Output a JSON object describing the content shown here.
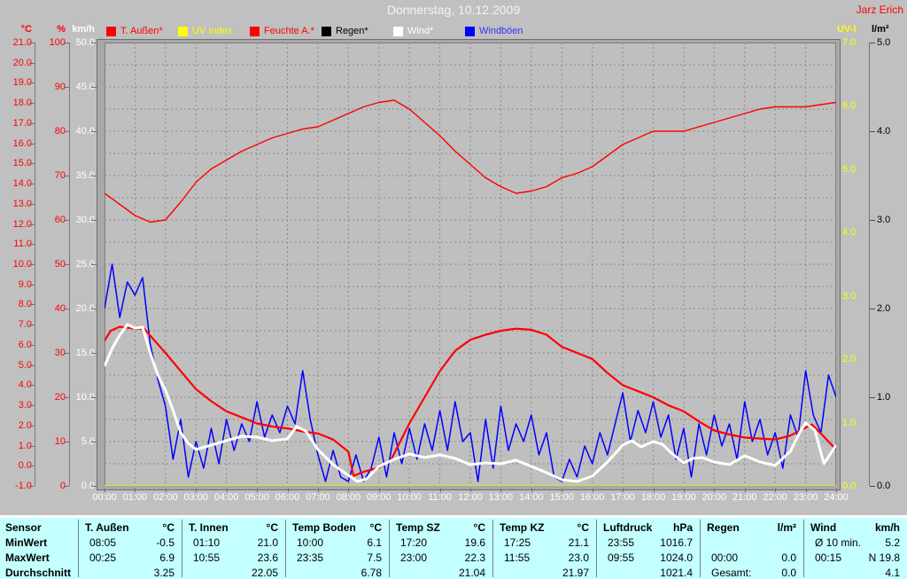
{
  "window": {
    "title": "Donnerstag, 10.12.2009",
    "owner": "Jarz Erich"
  },
  "legend": {
    "items": [
      {
        "label": "T. Außen*",
        "box_color": "#ff0000",
        "text_color": "#ff0000"
      },
      {
        "label": "UV Index",
        "box_color": "#ffff00",
        "text_color": "#ffff00"
      },
      {
        "label": "Feuchte A.*",
        "box_color": "#ff0000",
        "text_color": "#ff0000"
      },
      {
        "label": "Regen*",
        "box_color": "#000000",
        "text_color": "#000000"
      },
      {
        "label": "Wind*",
        "box_color": "#ffffff",
        "text_color": "#ffffff"
      },
      {
        "label": "Windböen",
        "box_color": "#0000ff",
        "text_color": "#3333ff"
      }
    ]
  },
  "axes_labels": {
    "celsius": {
      "unit": "°C",
      "color": "#ff0000",
      "ticks": [
        "21.0",
        "20.0",
        "19.0",
        "18.0",
        "17.0",
        "16.0",
        "15.0",
        "14.0",
        "13.0",
        "12.0",
        "11.0",
        "10.0",
        "9.0",
        "8.0",
        "7.0",
        "6.0",
        "5.0",
        "4.0",
        "3.0",
        "2.0",
        "1.0",
        "0.0",
        "-1.0"
      ]
    },
    "percent": {
      "unit": "%",
      "color": "#ff0000",
      "ticks": [
        "100",
        "90",
        "80",
        "70",
        "60",
        "50",
        "40",
        "30",
        "20",
        "10",
        "0"
      ]
    },
    "kmh": {
      "unit": "km/h",
      "color": "#ffffff",
      "ticks": [
        "50.0",
        "45.0",
        "40.0",
        "35.0",
        "30.0",
        "25.0",
        "20.0",
        "15.0",
        "10.0",
        "5.0",
        "0.0"
      ]
    },
    "uvi": {
      "unit": "UV-I",
      "color": "#ffff00",
      "ticks": [
        "7.0",
        "6.0",
        "5.0",
        "4.0",
        "3.0",
        "2.0",
        "1.0",
        "0.0"
      ]
    },
    "lm2": {
      "unit": "l/m²",
      "color": "#000000",
      "ticks": [
        "5.0",
        "4.0",
        "3.0",
        "2.0",
        "1.0",
        "0.0"
      ]
    }
  },
  "x_axis": {
    "labels": [
      "00:00",
      "01:00",
      "02:00",
      "03:00",
      "04:00",
      "05:00",
      "06:00",
      "07:00",
      "08:00",
      "09:00",
      "10:00",
      "11:00",
      "12:00",
      "13:00",
      "14:00",
      "15:00",
      "16:00",
      "17:00",
      "18:00",
      "19:00",
      "20:00",
      "21:00",
      "22:00",
      "23:00",
      "24:00"
    ]
  },
  "chart_data": {
    "type": "line",
    "title": "Donnerstag, 10.12.2009",
    "grid": true,
    "axes": {
      "celsius": {
        "range": [
          -1,
          21
        ]
      },
      "percent": {
        "range": [
          0,
          100
        ]
      },
      "kmh": {
        "range": [
          0,
          50
        ]
      },
      "uvi": {
        "range": [
          0,
          7
        ]
      },
      "lm2": {
        "range": [
          0,
          5
        ]
      }
    },
    "x_range_hours": [
      0,
      24
    ],
    "series": [
      {
        "name": "Regen*",
        "axis": "lm2",
        "color": "#000000",
        "width": 1,
        "x": [
          0,
          24
        ],
        "values": [
          0,
          0
        ]
      },
      {
        "name": "UV Index",
        "axis": "uvi",
        "color": "#ffff00",
        "width": 1.5,
        "x": [
          0,
          24
        ],
        "values": [
          0,
          0
        ]
      },
      {
        "name": "Feuchte A.*",
        "axis": "percent",
        "color": "#ff0000",
        "width": 1.4,
        "x_start": 0,
        "x_step": 0.5,
        "values": [
          66,
          63.5,
          61,
          59.5,
          60,
          64,
          68.5,
          71.5,
          73.5,
          75.5,
          77,
          78.5,
          79.5,
          80.5,
          81,
          82.5,
          84,
          85.5,
          86.5,
          87,
          85,
          82,
          79,
          75.5,
          72.5,
          69.5,
          67.5,
          66,
          66.5,
          67.5,
          69.5,
          70.5,
          72,
          74.5,
          77,
          78.5,
          80,
          80,
          80,
          81,
          82,
          83,
          84,
          85,
          85.5,
          85.5,
          85.5,
          86,
          86.5
        ]
      },
      {
        "name": "Windböen",
        "axis": "kmh",
        "color": "#0000ff",
        "width": 1.5,
        "x_start": 0,
        "x_step": 0.25,
        "values": [
          20,
          25,
          19,
          23,
          21.5,
          23.5,
          16,
          12,
          9,
          3,
          7.5,
          1,
          5,
          2,
          6.5,
          2.5,
          7.5,
          4,
          7,
          5,
          9.5,
          5.5,
          8,
          6,
          9,
          7,
          13,
          7.5,
          3.5,
          0.5,
          4,
          1,
          0.5,
          3.5,
          0.5,
          2,
          5.5,
          1,
          6,
          2.5,
          6.5,
          3,
          7,
          4,
          8.5,
          4,
          9.5,
          5,
          6,
          0.5,
          7.5,
          2,
          9,
          4,
          7,
          5,
          8,
          3.5,
          6,
          1,
          0.5,
          3,
          1,
          4.5,
          2.5,
          6,
          3.5,
          7,
          10.5,
          5,
          8.5,
          6,
          9.5,
          5.5,
          8,
          3,
          6.5,
          1,
          7,
          3.5,
          8,
          4.5,
          7,
          3,
          9.5,
          5,
          7.5,
          3.5,
          6,
          2,
          8,
          5.5,
          13,
          8,
          6,
          12.5,
          10
        ]
      },
      {
        "name": "T. Außen*",
        "axis": "celsius",
        "color": "#ff0000",
        "width": 2.2,
        "x": [
          0,
          0.2,
          0.5,
          1,
          1.3,
          2,
          2.5,
          3,
          3.5,
          4,
          4.5,
          5,
          5.5,
          6,
          6.5,
          7,
          7.5,
          8,
          8.17,
          8.5,
          9,
          9.4,
          10,
          10.5,
          11,
          11.5,
          12,
          12.5,
          13,
          13.5,
          14,
          14.5,
          15,
          15.5,
          16,
          16.5,
          17,
          17.5,
          18,
          18.5,
          19,
          19.5,
          20,
          20.5,
          21,
          21.5,
          22,
          22.5,
          23,
          23.2,
          23.5,
          24
        ],
        "values": [
          6.2,
          6.7,
          6.9,
          6.8,
          6.8,
          5.6,
          4.7,
          3.8,
          3.2,
          2.7,
          2.4,
          2.1,
          1.95,
          1.85,
          1.7,
          1.6,
          1.3,
          0.7,
          -0.5,
          -0.3,
          -0.1,
          0.3,
          2.1,
          3.4,
          4.7,
          5.7,
          6.25,
          6.5,
          6.7,
          6.8,
          6.75,
          6.5,
          5.9,
          5.6,
          5.3,
          4.6,
          4.0,
          3.7,
          3.4,
          3.0,
          2.7,
          2.2,
          1.75,
          1.55,
          1.4,
          1.35,
          1.3,
          1.5,
          1.9,
          2.05,
          1.6,
          0.8
        ]
      },
      {
        "name": "Wind*",
        "axis": "kmh",
        "color": "#ffffff",
        "width": 3,
        "x": [
          0,
          0.25,
          0.5,
          0.75,
          1,
          1.25,
          1.5,
          1.75,
          2,
          2.25,
          2.5,
          2.75,
          3,
          3.5,
          4,
          4.5,
          5,
          5.5,
          6,
          6.3,
          6.6,
          7,
          7.5,
          8,
          8.3,
          8.6,
          9,
          9.5,
          10,
          10.5,
          11,
          11.5,
          12,
          12.5,
          13,
          13.5,
          14,
          14.5,
          15,
          15.5,
          16,
          16.5,
          17,
          17.3,
          17.6,
          18,
          18.3,
          18.6,
          19,
          19.3,
          19.6,
          20,
          20.5,
          21,
          21.5,
          22,
          22.5,
          22.8,
          23,
          23.3,
          23.6,
          24
        ],
        "values": [
          13.5,
          15.5,
          17,
          18.2,
          17.8,
          17.9,
          15,
          12.5,
          10.8,
          8.5,
          6,
          4.8,
          4.1,
          4.6,
          5.1,
          5.6,
          5.5,
          5.1,
          5.3,
          6.7,
          6.2,
          4.1,
          2.4,
          1.2,
          0.5,
          0.8,
          2.2,
          3,
          3.6,
          3.2,
          3.5,
          3.1,
          2.4,
          2.6,
          2.5,
          2.9,
          2.2,
          1.5,
          0.7,
          0.5,
          1.1,
          2.7,
          4.6,
          5.1,
          4.4,
          5.0,
          4.7,
          3.7,
          2.6,
          3.1,
          3.2,
          2.7,
          2.4,
          3.4,
          2.7,
          2.3,
          3.9,
          6,
          7.1,
          6.3,
          2.5,
          4.6
        ]
      }
    ]
  },
  "table": {
    "row_labels": [
      "Sensor",
      "MinWert",
      "MaxWert",
      "Durchschnitt"
    ],
    "columns": [
      {
        "header": "T. Außen",
        "unit": "°C",
        "min": [
          "08:05",
          "-0.5"
        ],
        "max": [
          "00:25",
          "6.9"
        ],
        "avg": [
          "",
          "3.25"
        ]
      },
      {
        "header": "T. Innen",
        "unit": "°C",
        "min": [
          "01:10",
          "21.0"
        ],
        "max": [
          "10:55",
          "23.6"
        ],
        "avg": [
          "",
          "22.05"
        ]
      },
      {
        "header": "Temp Boden",
        "unit": "°C",
        "min": [
          "10:00",
          "6.1"
        ],
        "max": [
          "23:35",
          "7.5"
        ],
        "avg": [
          "",
          "6.78"
        ]
      },
      {
        "header": "Temp SZ",
        "unit": "°C",
        "min": [
          "17:20",
          "19.6"
        ],
        "max": [
          "23:00",
          "22.3"
        ],
        "avg": [
          "",
          "21.04"
        ]
      },
      {
        "header": "Temp KZ",
        "unit": "°C",
        "min": [
          "17:25",
          "21.1"
        ],
        "max": [
          "11:55",
          "23.0"
        ],
        "avg": [
          "",
          "21.97"
        ]
      },
      {
        "header": "Luftdruck",
        "unit": "hPa",
        "min": [
          "23:55",
          "1016.7"
        ],
        "max": [
          "09:55",
          "1024.0"
        ],
        "avg": [
          "",
          "1021.4"
        ]
      },
      {
        "header": "Regen",
        "unit": "l/m²",
        "min": [
          "",
          ""
        ],
        "max": [
          "00:00",
          "0.0"
        ],
        "avg": [
          "Gesamt:",
          "0.0"
        ]
      },
      {
        "header": "Wind",
        "unit": "km/h",
        "min": [
          "Ø 10 min.",
          "5.2"
        ],
        "max": [
          "00:15",
          "N 19.8"
        ],
        "avg": [
          "",
          "4.1"
        ]
      }
    ]
  },
  "colors": {
    "background": "#c0c0c0",
    "grid": "#8a8a8a",
    "table_bg": "#c4ffff",
    "frame": "#a8a8a8"
  }
}
